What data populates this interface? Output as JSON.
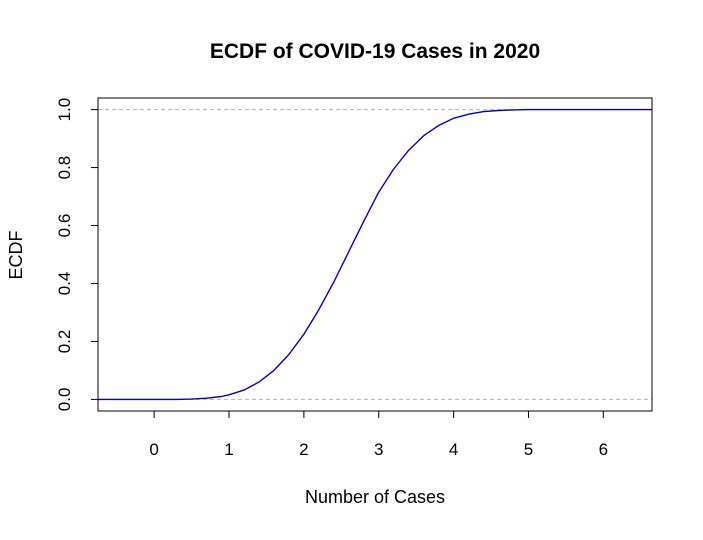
{
  "chart_data": {
    "type": "line",
    "title": "ECDF of COVID-19 Cases in 2020",
    "xlabel": "Number of Cases",
    "ylabel": "ECDF",
    "xlim": [
      -0.75,
      6.65
    ],
    "ylim": [
      -0.04,
      1.04
    ],
    "x_ticks": [
      "0",
      "1",
      "2",
      "3",
      "4",
      "5",
      "6"
    ],
    "y_ticks": [
      "0.0",
      "0.2",
      "0.4",
      "0.6",
      "0.8",
      "1.0"
    ],
    "reference_lines_y": [
      0,
      1
    ],
    "grid": false,
    "legend": "none",
    "series": [
      {
        "color": "#0000cd",
        "x": [
          -0.75,
          0.0,
          0.3,
          0.5,
          0.7,
          0.9,
          1.0,
          1.2,
          1.4,
          1.6,
          1.8,
          2.0,
          2.2,
          2.4,
          2.6,
          2.8,
          3.0,
          3.2,
          3.4,
          3.6,
          3.8,
          4.0,
          4.2,
          4.4,
          4.6,
          4.8,
          5.0,
          5.5,
          6.0,
          6.65
        ],
        "y": [
          0.0,
          0.0,
          0.0,
          0.001,
          0.004,
          0.01,
          0.016,
          0.032,
          0.06,
          0.1,
          0.155,
          0.225,
          0.31,
          0.405,
          0.51,
          0.615,
          0.715,
          0.795,
          0.86,
          0.91,
          0.945,
          0.97,
          0.984,
          0.993,
          0.997,
          0.999,
          1.0,
          1.0,
          1.0,
          1.0
        ]
      }
    ]
  }
}
